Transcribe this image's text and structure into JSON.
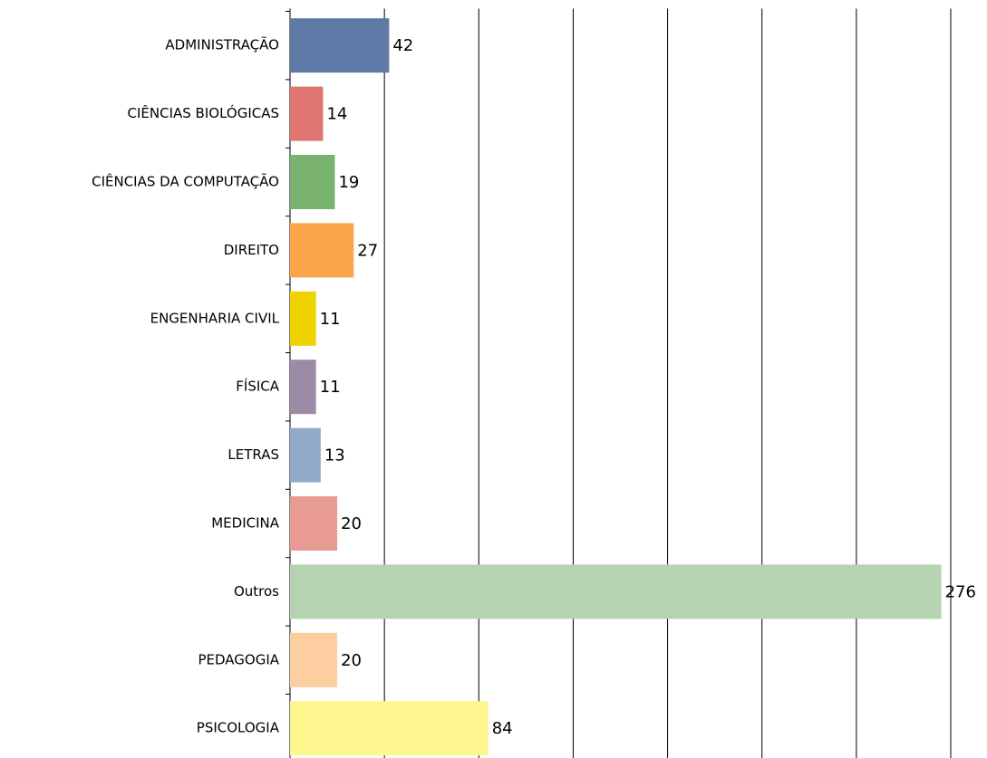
{
  "chart_data": {
    "type": "hbar",
    "categories": [
      "ADMINISTRAÇÃO",
      "CIÊNCIAS BIOLÓGICAS",
      "CIÊNCIAS DA COMPUTAÇÃO",
      "DIREITO",
      "ENGENHARIA CIVIL",
      "FÍSICA",
      "LETRAS",
      "MEDICINA",
      "Outros",
      "PEDAGOGIA",
      "PSICOLOGIA"
    ],
    "values": [
      42,
      14,
      19,
      27,
      11,
      11,
      13,
      20,
      276,
      20,
      84
    ],
    "colors": [
      "#5f7aa6",
      "#df7672",
      "#79b36f",
      "#fba54c",
      "#efd300",
      "#9c8aa6",
      "#92a9c9",
      "#e89b93",
      "#b5d3b0",
      "#fdcfa0",
      "#fdf58e"
    ],
    "xlim": [
      0,
      280
    ],
    "xticks": [
      0,
      40,
      80,
      120,
      160,
      200,
      240,
      280
    ],
    "grid": true
  }
}
